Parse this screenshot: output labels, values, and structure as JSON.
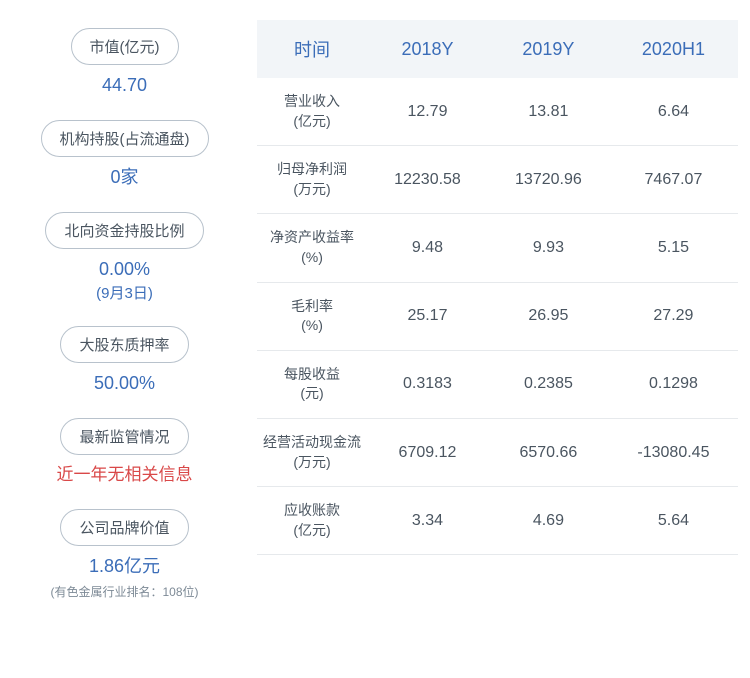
{
  "left_stats": [
    {
      "label": "市值(亿元)",
      "value": "44.70",
      "color": "blue"
    },
    {
      "label": "机构持股(占流通盘)",
      "value": "0家",
      "color": "blue"
    },
    {
      "label": "北向资金持股比例",
      "value": "0.00%",
      "sub": "(9月3日)",
      "color": "blue"
    },
    {
      "label": "大股东质押率",
      "value": "50.00%",
      "color": "blue"
    },
    {
      "label": "最新监管情况",
      "value": "近一年无相关信息",
      "color": "red"
    },
    {
      "label": "公司品牌价值",
      "value": "1.86亿元",
      "color": "blue",
      "footnote": "(有色金属行业排名：108位)"
    }
  ],
  "table": {
    "columns": [
      "时间",
      "2018Y",
      "2019Y",
      "2020H1"
    ],
    "rows": [
      {
        "metric": "营业收入",
        "unit": "(亿元)",
        "cells": [
          "12.79",
          "13.81",
          "6.64"
        ]
      },
      {
        "metric": "归母净利润",
        "unit": "(万元)",
        "cells": [
          "12230.58",
          "13720.96",
          "7467.07"
        ]
      },
      {
        "metric": "净资产收益率",
        "unit": "(%)",
        "cells": [
          "9.48",
          "9.93",
          "5.15"
        ]
      },
      {
        "metric": "毛利率",
        "unit": "(%)",
        "cells": [
          "25.17",
          "26.95",
          "27.29"
        ]
      },
      {
        "metric": "每股收益",
        "unit": "(元)",
        "cells": [
          "0.3183",
          "0.2385",
          "0.1298"
        ]
      },
      {
        "metric": "经营活动现金流",
        "unit": "(万元)",
        "cells": [
          "6709.12",
          "6570.66",
          "-13080.45"
        ]
      },
      {
        "metric": "应收账款",
        "unit": "(亿元)",
        "cells": [
          "3.34",
          "4.69",
          "5.64"
        ]
      }
    ]
  },
  "styling": {
    "header_bg": "#f2f5f8",
    "header_text_color": "#3b6db8",
    "body_text_color": "#4a5560",
    "border_color": "#e6e9ec",
    "pill_border_color": "#b8c2cc",
    "blue_value_color": "#3b6db8",
    "red_value_color": "#d94848"
  }
}
